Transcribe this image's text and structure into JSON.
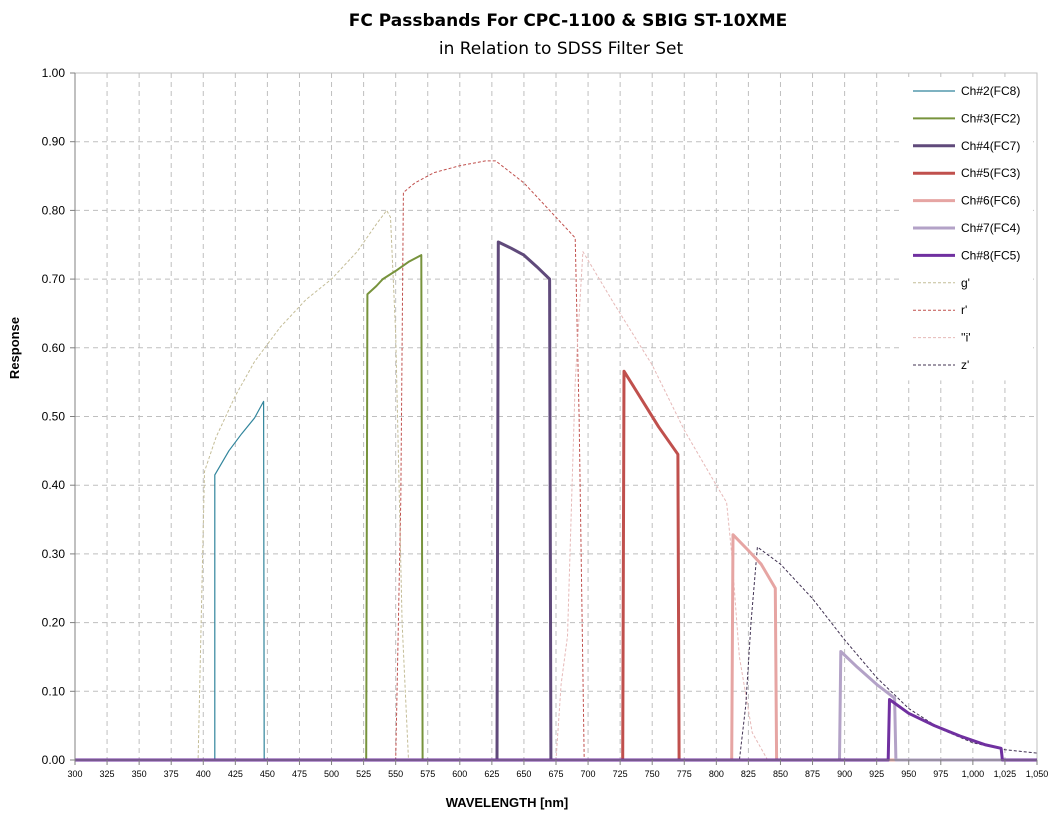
{
  "chart_data": {
    "type": "line",
    "title": "FC Passbands For CPC-1100 & SBIG ST-10XME",
    "subtitle": "in Relation to SDSS Filter Set",
    "xlabel": "WAVELENGTH [nm]",
    "ylabel": "Response",
    "xlim": [
      300,
      1050
    ],
    "ylim": [
      0,
      1
    ],
    "x_tick_labels": [
      "300",
      "325",
      "350",
      "375",
      "400",
      "425",
      "450",
      "475",
      "500",
      "525",
      "550",
      "575",
      "600",
      "625",
      "650",
      "675",
      "700",
      "725",
      "750",
      "775",
      "800",
      "825",
      "850",
      "875",
      "900",
      "925",
      "950",
      "975",
      "1,000",
      "1,025",
      "1,050"
    ],
    "y_tick_labels": [
      "0.00",
      "0.10",
      "0.20",
      "0.30",
      "0.40",
      "0.50",
      "0.60",
      "0.70",
      "0.80",
      "0.90",
      "1.00"
    ],
    "grid": true,
    "legend_position": "top-right",
    "series": [
      {
        "name": "Ch#2(FC8)",
        "color": "#31859C",
        "width": 1.2,
        "dash": "",
        "points": [
          [
            300,
            0
          ],
          [
            409,
            0
          ],
          [
            409,
            0.415
          ],
          [
            420,
            0.45
          ],
          [
            430,
            0.475
          ],
          [
            440,
            0.498
          ],
          [
            447,
            0.522
          ],
          [
            447.5,
            0
          ],
          [
            1050,
            0
          ]
        ]
      },
      {
        "name": "Ch#3(FC2)",
        "color": "#77933C",
        "width": 2,
        "dash": "",
        "points": [
          [
            300,
            0
          ],
          [
            527,
            0
          ],
          [
            528,
            0.678
          ],
          [
            535,
            0.69
          ],
          [
            540,
            0.7
          ],
          [
            550,
            0.712
          ],
          [
            560,
            0.725
          ],
          [
            570,
            0.735
          ],
          [
            571,
            0
          ],
          [
            1050,
            0
          ]
        ]
      },
      {
        "name": "Ch#4(FC7)",
        "color": "#604A7B",
        "width": 3,
        "dash": "",
        "points": [
          [
            300,
            0
          ],
          [
            629,
            0
          ],
          [
            630,
            0.754
          ],
          [
            640,
            0.745
          ],
          [
            650,
            0.735
          ],
          [
            660,
            0.718
          ],
          [
            670,
            0.7
          ],
          [
            671,
            0
          ],
          [
            1050,
            0
          ]
        ]
      },
      {
        "name": "Ch#5(FC3)",
        "color": "#C0504D",
        "width": 3,
        "dash": "",
        "points": [
          [
            300,
            0
          ],
          [
            727,
            0
          ],
          [
            728,
            0.566
          ],
          [
            735,
            0.545
          ],
          [
            745,
            0.515
          ],
          [
            755,
            0.485
          ],
          [
            770,
            0.445
          ],
          [
            771,
            0
          ],
          [
            1050,
            0
          ]
        ]
      },
      {
        "name": "Ch#6(FC6)",
        "color": "#E6A5A3",
        "width": 3,
        "dash": "",
        "points": [
          [
            300,
            0
          ],
          [
            812,
            0
          ],
          [
            813,
            0.328
          ],
          [
            825,
            0.305
          ],
          [
            835,
            0.285
          ],
          [
            846,
            0.25
          ],
          [
            847,
            0
          ],
          [
            1050,
            0
          ]
        ]
      },
      {
        "name": "Ch#7(FC4)",
        "color": "#B3A2C7",
        "width": 3,
        "dash": "",
        "points": [
          [
            300,
            0
          ],
          [
            896,
            0
          ],
          [
            897,
            0.158
          ],
          [
            910,
            0.135
          ],
          [
            925,
            0.11
          ],
          [
            939,
            0.09
          ],
          [
            940,
            0
          ],
          [
            1050,
            0
          ]
        ]
      },
      {
        "name": "Ch#8(FC5)",
        "color": "#7030A0",
        "width": 3,
        "dash": "",
        "points": [
          [
            300,
            0
          ],
          [
            934,
            0
          ],
          [
            935,
            0.088
          ],
          [
            950,
            0.068
          ],
          [
            970,
            0.05
          ],
          [
            990,
            0.035
          ],
          [
            1010,
            0.022
          ],
          [
            1022,
            0.017
          ],
          [
            1023,
            0
          ],
          [
            1050,
            0
          ]
        ]
      },
      {
        "name": "g'",
        "color": "#C4BD97",
        "width": 1,
        "dash": "3,2",
        "points": [
          [
            300,
            0
          ],
          [
            396,
            0
          ],
          [
            401,
            0.42
          ],
          [
            410,
            0.47
          ],
          [
            425,
            0.53
          ],
          [
            440,
            0.58
          ],
          [
            460,
            0.63
          ],
          [
            480,
            0.67
          ],
          [
            500,
            0.7
          ],
          [
            520,
            0.74
          ],
          [
            535,
            0.78
          ],
          [
            543,
            0.8
          ],
          [
            546,
            0.79
          ],
          [
            550,
            0.62
          ],
          [
            555,
            0.2
          ],
          [
            560,
            0
          ],
          [
            1050,
            0
          ]
        ]
      },
      {
        "name": "r'",
        "color": "#C0504D",
        "width": 1,
        "dash": "3,2",
        "points": [
          [
            300,
            0
          ],
          [
            550,
            0
          ],
          [
            554,
            0.38
          ],
          [
            556,
            0.826
          ],
          [
            565,
            0.84
          ],
          [
            580,
            0.855
          ],
          [
            600,
            0.865
          ],
          [
            620,
            0.872
          ],
          [
            628,
            0.872
          ],
          [
            650,
            0.84
          ],
          [
            670,
            0.8
          ],
          [
            690,
            0.76
          ],
          [
            693,
            0.5
          ],
          [
            697,
            0
          ],
          [
            1050,
            0
          ]
        ]
      },
      {
        "name": "''i'",
        "color": "#E6B9B8",
        "width": 1,
        "dash": "3,2",
        "points": [
          [
            300,
            0
          ],
          [
            675,
            0
          ],
          [
            679,
            0.11
          ],
          [
            684,
            0.18
          ],
          [
            690,
            0.55
          ],
          [
            696,
            0.74
          ],
          [
            720,
            0.665
          ],
          [
            750,
            0.575
          ],
          [
            775,
            0.48
          ],
          [
            800,
            0.4
          ],
          [
            808,
            0.375
          ],
          [
            812,
            0.3
          ],
          [
            818,
            0.15
          ],
          [
            828,
            0.04
          ],
          [
            840,
            0
          ],
          [
            1050,
            0
          ]
        ]
      },
      {
        "name": "z'",
        "color": "#403152",
        "width": 1,
        "dash": "3,2",
        "points": [
          [
            300,
            0
          ],
          [
            818,
            0
          ],
          [
            823,
            0.08
          ],
          [
            827,
            0.2
          ],
          [
            832,
            0.31
          ],
          [
            850,
            0.285
          ],
          [
            875,
            0.235
          ],
          [
            900,
            0.175
          ],
          [
            925,
            0.12
          ],
          [
            950,
            0.075
          ],
          [
            975,
            0.045
          ],
          [
            1000,
            0.025
          ],
          [
            1025,
            0.015
          ],
          [
            1050,
            0.01
          ]
        ]
      }
    ]
  }
}
